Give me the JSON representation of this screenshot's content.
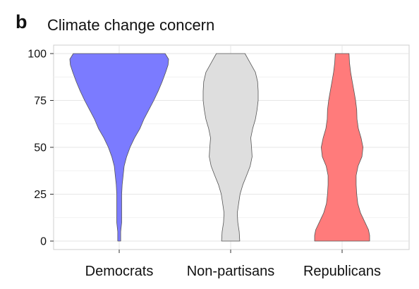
{
  "panel_letter": "b",
  "chart_data": {
    "type": "violin",
    "title": "Climate change concern",
    "xlabel": "",
    "ylabel": "",
    "ylim": [
      0,
      100
    ],
    "yticks": [
      0,
      25,
      50,
      75,
      100
    ],
    "grid": true,
    "categories": [
      "Democrats",
      "Non-partisans",
      "Republicans"
    ],
    "colors": [
      "#7b7bff",
      "#dedede",
      "#ff7b7b"
    ],
    "series": [
      {
        "category": "Democrats",
        "density": [
          [
            0,
            0.03
          ],
          [
            5,
            0.03
          ],
          [
            10,
            0.05
          ],
          [
            15,
            0.05
          ],
          [
            20,
            0.05
          ],
          [
            25,
            0.05
          ],
          [
            30,
            0.06
          ],
          [
            35,
            0.08
          ],
          [
            40,
            0.1
          ],
          [
            45,
            0.15
          ],
          [
            50,
            0.22
          ],
          [
            55,
            0.31
          ],
          [
            60,
            0.42
          ],
          [
            65,
            0.5
          ],
          [
            70,
            0.6
          ],
          [
            75,
            0.7
          ],
          [
            80,
            0.79
          ],
          [
            85,
            0.87
          ],
          [
            90,
            0.94
          ],
          [
            94,
            0.99
          ],
          [
            97,
            1.0
          ],
          [
            100,
            0.93
          ]
        ]
      },
      {
        "category": "Non-partisans",
        "density": [
          [
            0,
            0.33
          ],
          [
            5,
            0.31
          ],
          [
            10,
            0.26
          ],
          [
            15,
            0.24
          ],
          [
            20,
            0.29
          ],
          [
            25,
            0.34
          ],
          [
            30,
            0.44
          ],
          [
            35,
            0.58
          ],
          [
            40,
            0.71
          ],
          [
            45,
            0.78
          ],
          [
            50,
            0.76
          ],
          [
            55,
            0.73
          ],
          [
            60,
            0.8
          ],
          [
            65,
            0.9
          ],
          [
            70,
            0.96
          ],
          [
            75,
            1.0
          ],
          [
            80,
            1.0
          ],
          [
            85,
            0.98
          ],
          [
            90,
            0.9
          ],
          [
            95,
            0.71
          ],
          [
            100,
            0.52
          ]
        ]
      },
      {
        "category": "Republicans",
        "density": [
          [
            0,
            1.0
          ],
          [
            3,
            1.0
          ],
          [
            6,
            0.96
          ],
          [
            10,
            0.83
          ],
          [
            15,
            0.67
          ],
          [
            20,
            0.57
          ],
          [
            25,
            0.53
          ],
          [
            30,
            0.51
          ],
          [
            35,
            0.51
          ],
          [
            40,
            0.58
          ],
          [
            45,
            0.72
          ],
          [
            50,
            0.76
          ],
          [
            55,
            0.69
          ],
          [
            60,
            0.59
          ],
          [
            65,
            0.54
          ],
          [
            70,
            0.53
          ],
          [
            75,
            0.49
          ],
          [
            80,
            0.43
          ],
          [
            85,
            0.37
          ],
          [
            90,
            0.31
          ],
          [
            95,
            0.27
          ],
          [
            100,
            0.25
          ]
        ]
      }
    ]
  }
}
